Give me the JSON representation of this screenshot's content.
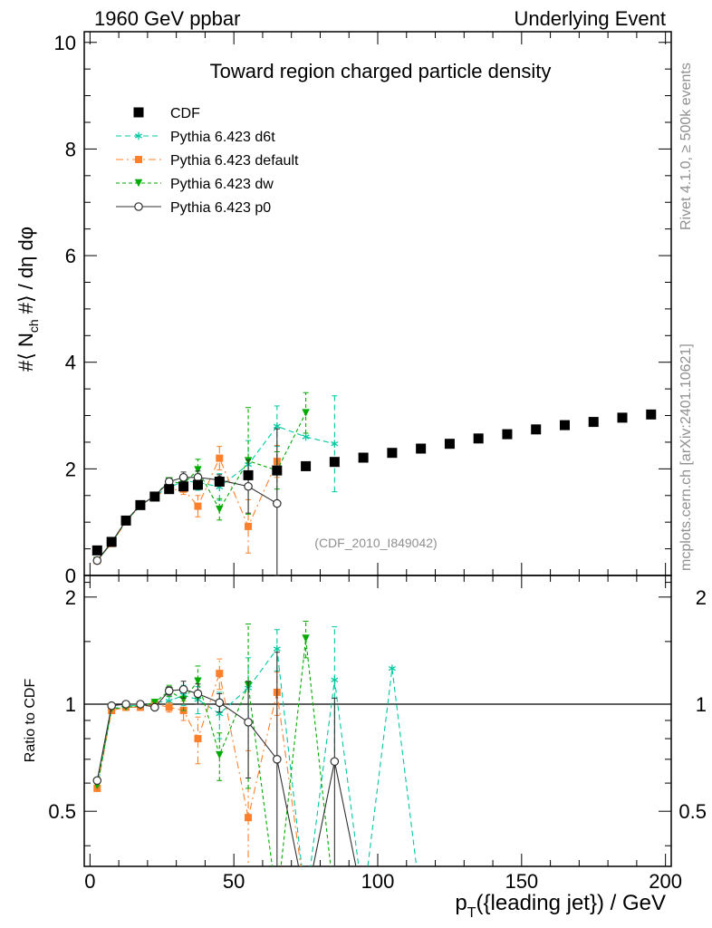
{
  "header": {
    "left": "1960 GeV ppbar",
    "right": "Underlying Event"
  },
  "side": {
    "top": "Rivet 4.1.0, ≥ 500k events",
    "bottom": "mcplots.cern.ch [arXiv:2401.10621]"
  },
  "chart_data": {
    "type": "scatter",
    "title": "Toward region charged particle density",
    "analysis_label": "(CDF_2010_I849042)",
    "xlabel_main": "p",
    "xlabel_sub": "T",
    "xlabel_rest": "({leading jet}) / GeV",
    "ylabel_pre": "#⟨ N",
    "ylabel_sub": "ch",
    "ylabel_post": " #⟩ / dη dφ",
    "ratio_ylabel": "Ratio to CDF",
    "xlim": [
      -2,
      202
    ],
    "ylim": [
      0,
      10.2
    ],
    "ratio_ylim": [
      0.35,
      2.3
    ],
    "x_ticks": [
      0,
      50,
      100,
      150,
      200
    ],
    "x_tick_labels": [
      "0",
      "50",
      "100",
      "150",
      "200"
    ],
    "y_ticks": [
      0,
      2,
      4,
      6,
      8,
      10
    ],
    "y_tick_labels": [
      "0",
      "2",
      "4",
      "6",
      "8",
      "10"
    ],
    "ratio_ticks": [
      0.5,
      1,
      2
    ],
    "ratio_tick_labels": [
      "0.5",
      "1",
      "2"
    ],
    "series": [
      {
        "name": "CDF",
        "color": "#000000",
        "marker": "square",
        "line": "none",
        "x": [
          2.5,
          7.5,
          12.5,
          17.5,
          22.5,
          27.5,
          32.5,
          37.5,
          45,
          55,
          65,
          75,
          85,
          95,
          105,
          115,
          125,
          135,
          145,
          155,
          165,
          175,
          185,
          195
        ],
        "y": [
          0.47,
          0.63,
          1.03,
          1.32,
          1.48,
          1.62,
          1.67,
          1.7,
          1.76,
          1.88,
          1.97,
          2.05,
          2.13,
          2.21,
          2.3,
          2.38,
          2.47,
          2.57,
          2.65,
          2.74,
          2.82,
          2.88,
          2.96,
          3.02
        ]
      },
      {
        "name": "Pythia 6.423 d6t",
        "color": "#00c8a0",
        "marker": "star",
        "line": "dashed",
        "x": [
          2.5,
          7.5,
          12.5,
          17.5,
          22.5,
          27.5,
          32.5,
          37.5,
          45,
          55,
          65,
          75,
          85
        ],
        "y": [
          0.27,
          0.61,
          1.02,
          1.31,
          1.5,
          1.65,
          1.77,
          1.75,
          1.66,
          2.08,
          2.8,
          2.6,
          2.47
        ],
        "yerr": [
          0,
          0,
          0,
          0,
          0,
          0.05,
          0.12,
          0.15,
          0.25,
          0.45,
          0.38,
          0,
          0.9
        ],
        "ratio_x": [
          2.5,
          7.5,
          12.5,
          17.5,
          22.5,
          27.5,
          32.5,
          37.5,
          45,
          55,
          65,
          75,
          85,
          95,
          105,
          115
        ],
        "ratio": [
          0.58,
          0.97,
          0.99,
          0.99,
          1.01,
          1.02,
          1.06,
          1.03,
          0.94,
          1.11,
          1.43,
          0.0,
          1.17,
          0.0,
          1.26,
          0.0
        ],
        "ratio_err": [
          0,
          0,
          0,
          0,
          0,
          0.03,
          0.07,
          0.09,
          0.14,
          0.24,
          0.19,
          0,
          0.48,
          0,
          0,
          0
        ]
      },
      {
        "name": "Pythia 6.423 default",
        "color": "#ff7f2a",
        "marker": "square",
        "line": "dashdot",
        "x": [
          2.5,
          7.5,
          12.5,
          17.5,
          22.5,
          27.5,
          32.5,
          37.5,
          45,
          55,
          65
        ],
        "y": [
          0.28,
          0.6,
          1.01,
          1.31,
          1.5,
          1.6,
          1.62,
          1.3,
          2.2,
          0.92,
          2.14
        ],
        "yerr": [
          0,
          0,
          0,
          0,
          0,
          0.05,
          0.1,
          0.2,
          0.22,
          0.5,
          0.3
        ],
        "ratio_x": [
          2.5,
          7.5,
          12.5,
          17.5,
          22.5,
          27.5,
          32.5,
          37.5,
          45,
          55,
          65,
          75
        ],
        "ratio": [
          0.58,
          0.96,
          0.98,
          0.98,
          1.0,
          0.98,
          0.96,
          0.8,
          1.22,
          0.48,
          1.08,
          0.0
        ],
        "ratio_err": [
          0,
          0,
          0,
          0,
          0,
          0.03,
          0.06,
          0.12,
          0.12,
          0.26,
          0.15,
          0
        ]
      },
      {
        "name": "Pythia 6.423 dw",
        "color": "#00aa00",
        "marker": "triangle-down",
        "line": "dotted",
        "x": [
          2.5,
          7.5,
          12.5,
          17.5,
          22.5,
          27.5,
          32.5,
          37.5,
          45,
          55,
          65,
          75
        ],
        "y": [
          0.28,
          0.61,
          1.02,
          1.31,
          1.5,
          1.77,
          1.72,
          1.98,
          1.24,
          2.15,
          1.97,
          3.05
        ],
        "yerr": [
          0,
          0,
          0,
          0,
          0,
          0.06,
          0.12,
          0.2,
          0.2,
          1.0,
          0.35,
          0.38
        ],
        "ratio_x": [
          2.5,
          7.5,
          12.5,
          17.5,
          22.5,
          27.5,
          32.5,
          37.5,
          45,
          55,
          65,
          75,
          85
        ],
        "ratio": [
          0.59,
          0.97,
          0.98,
          0.99,
          1.01,
          1.09,
          1.03,
          1.16,
          0.72,
          1.13,
          0.0,
          1.53,
          0.0
        ],
        "ratio_err": [
          0,
          0,
          0,
          0,
          0,
          0.04,
          0.07,
          0.12,
          0.11,
          0.55,
          0,
          0.18,
          0
        ]
      },
      {
        "name": "Pythia 6.423 p0",
        "color": "#303030",
        "marker": "circle-open",
        "line": "solid",
        "x": [
          2.5,
          7.5,
          12.5,
          17.5,
          22.5,
          27.5,
          32.5,
          37.5,
          45,
          55,
          65
        ],
        "y": [
          0.28,
          0.62,
          1.03,
          1.32,
          1.49,
          1.76,
          1.84,
          1.84,
          1.79,
          1.67,
          1.35
        ],
        "yerr": [
          0,
          0,
          0,
          0,
          0,
          0.05,
          0.1,
          0.12,
          0.1,
          0.5,
          1.4
        ],
        "ratio_x": [
          2.5,
          7.5,
          12.5,
          17.5,
          22.5,
          27.5,
          32.5,
          37.5,
          45,
          55,
          65,
          75,
          85,
          95
        ],
        "ratio": [
          0.61,
          0.99,
          1.0,
          1.0,
          0.98,
          1.09,
          1.1,
          1.07,
          1.01,
          0.89,
          0.7,
          0.0,
          0.69,
          0.0
        ],
        "ratio_err": [
          0,
          0,
          0,
          0,
          0,
          0.03,
          0.06,
          0.07,
          0.06,
          0.27,
          0.7,
          0,
          0.35,
          0
        ]
      }
    ]
  }
}
